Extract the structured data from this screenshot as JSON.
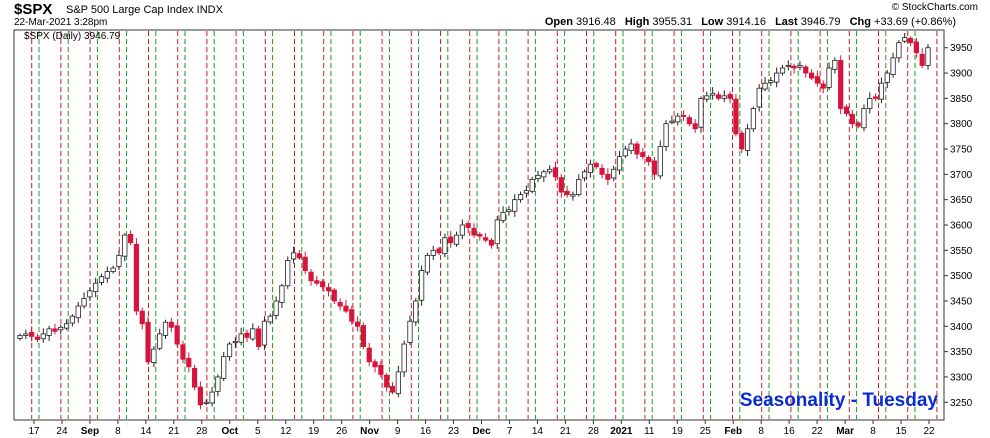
{
  "header": {
    "symbol": "$SPX",
    "name": "S&P 500 Large Cap Index INDX",
    "date": "22-Mar-2021 3:28pm",
    "credit": "© StockCharts.com",
    "ohlc": [
      {
        "label": "Open",
        "value": "3916.48"
      },
      {
        "label": "High",
        "value": "3955.31"
      },
      {
        "label": "Low",
        "value": "3914.16"
      },
      {
        "label": "Last",
        "value": "3946.79"
      },
      {
        "label": "Chg",
        "value": "+33.69 (+0.86%)"
      }
    ]
  },
  "colors": {
    "up": "#ffffff",
    "down": "#d8143c",
    "green_line": "#1e9a1e",
    "red_line": "#cc2020",
    "title": "#0a2ad8"
  },
  "chart_data": {
    "type": "candlestick",
    "title": "Seasonality - Tuesday",
    "legend": "$SPX (Daily) 3946.79",
    "y_ticks": [
      3250,
      3300,
      3350,
      3400,
      3450,
      3500,
      3550,
      3600,
      3650,
      3700,
      3750,
      3800,
      3850,
      3900,
      3950
    ],
    "ylim": [
      3215,
      3985
    ],
    "x_labels": [
      "17",
      "24",
      "Sep",
      "8",
      "14",
      "21",
      "28",
      "Oct",
      "5",
      "12",
      "19",
      "26",
      "Nov",
      "9",
      "16",
      "23",
      "Dec",
      "7",
      "14",
      "21",
      "28",
      "2021",
      "11",
      "19",
      "25",
      "Feb",
      "8",
      "16",
      "22",
      "Mar",
      "8",
      "15",
      "22"
    ],
    "bold_labels": [
      "Sep",
      "Oct",
      "Nov",
      "Dec",
      "2021",
      "Feb",
      "Mar"
    ],
    "closes": [
      3382,
      3385,
      3380,
      3374,
      3385,
      3395,
      3390,
      3398,
      3405,
      3420,
      3440,
      3455,
      3470,
      3485,
      3498,
      3508,
      3515,
      3540,
      3580,
      3565,
      3430,
      3405,
      3330,
      3355,
      3385,
      3408,
      3398,
      3365,
      3335,
      3320,
      3280,
      3245,
      3250,
      3270,
      3300,
      3340,
      3365,
      3370,
      3385,
      3378,
      3395,
      3360,
      3410,
      3420,
      3450,
      3480,
      3530,
      3545,
      3535,
      3510,
      3490,
      3485,
      3478,
      3470,
      3450,
      3440,
      3430,
      3410,
      3400,
      3360,
      3330,
      3320,
      3305,
      3280,
      3270,
      3310,
      3365,
      3410,
      3450,
      3510,
      3540,
      3550,
      3545,
      3575,
      3565,
      3580,
      3600,
      3595,
      3580,
      3578,
      3570,
      3560,
      3610,
      3625,
      3630,
      3650,
      3660,
      3668,
      3690,
      3698,
      3705,
      3710,
      3695,
      3665,
      3660,
      3660,
      3690,
      3705,
      3720,
      3715,
      3700,
      3690,
      3710,
      3735,
      3750,
      3760,
      3740,
      3735,
      3725,
      3700,
      3755,
      3800,
      3805,
      3815,
      3815,
      3800,
      3790,
      3850,
      3855,
      3860,
      3850,
      3855,
      3850,
      3780,
      3750,
      3790,
      3830,
      3870,
      3880,
      3885,
      3900,
      3910,
      3915,
      3910,
      3915,
      3900,
      3890,
      3880,
      3870,
      3910,
      3925,
      3830,
      3820,
      3800,
      3795,
      3830,
      3850,
      3850,
      3880,
      3900,
      3930,
      3960,
      3970,
      3960,
      3940,
      3915,
      3950
    ]
  }
}
